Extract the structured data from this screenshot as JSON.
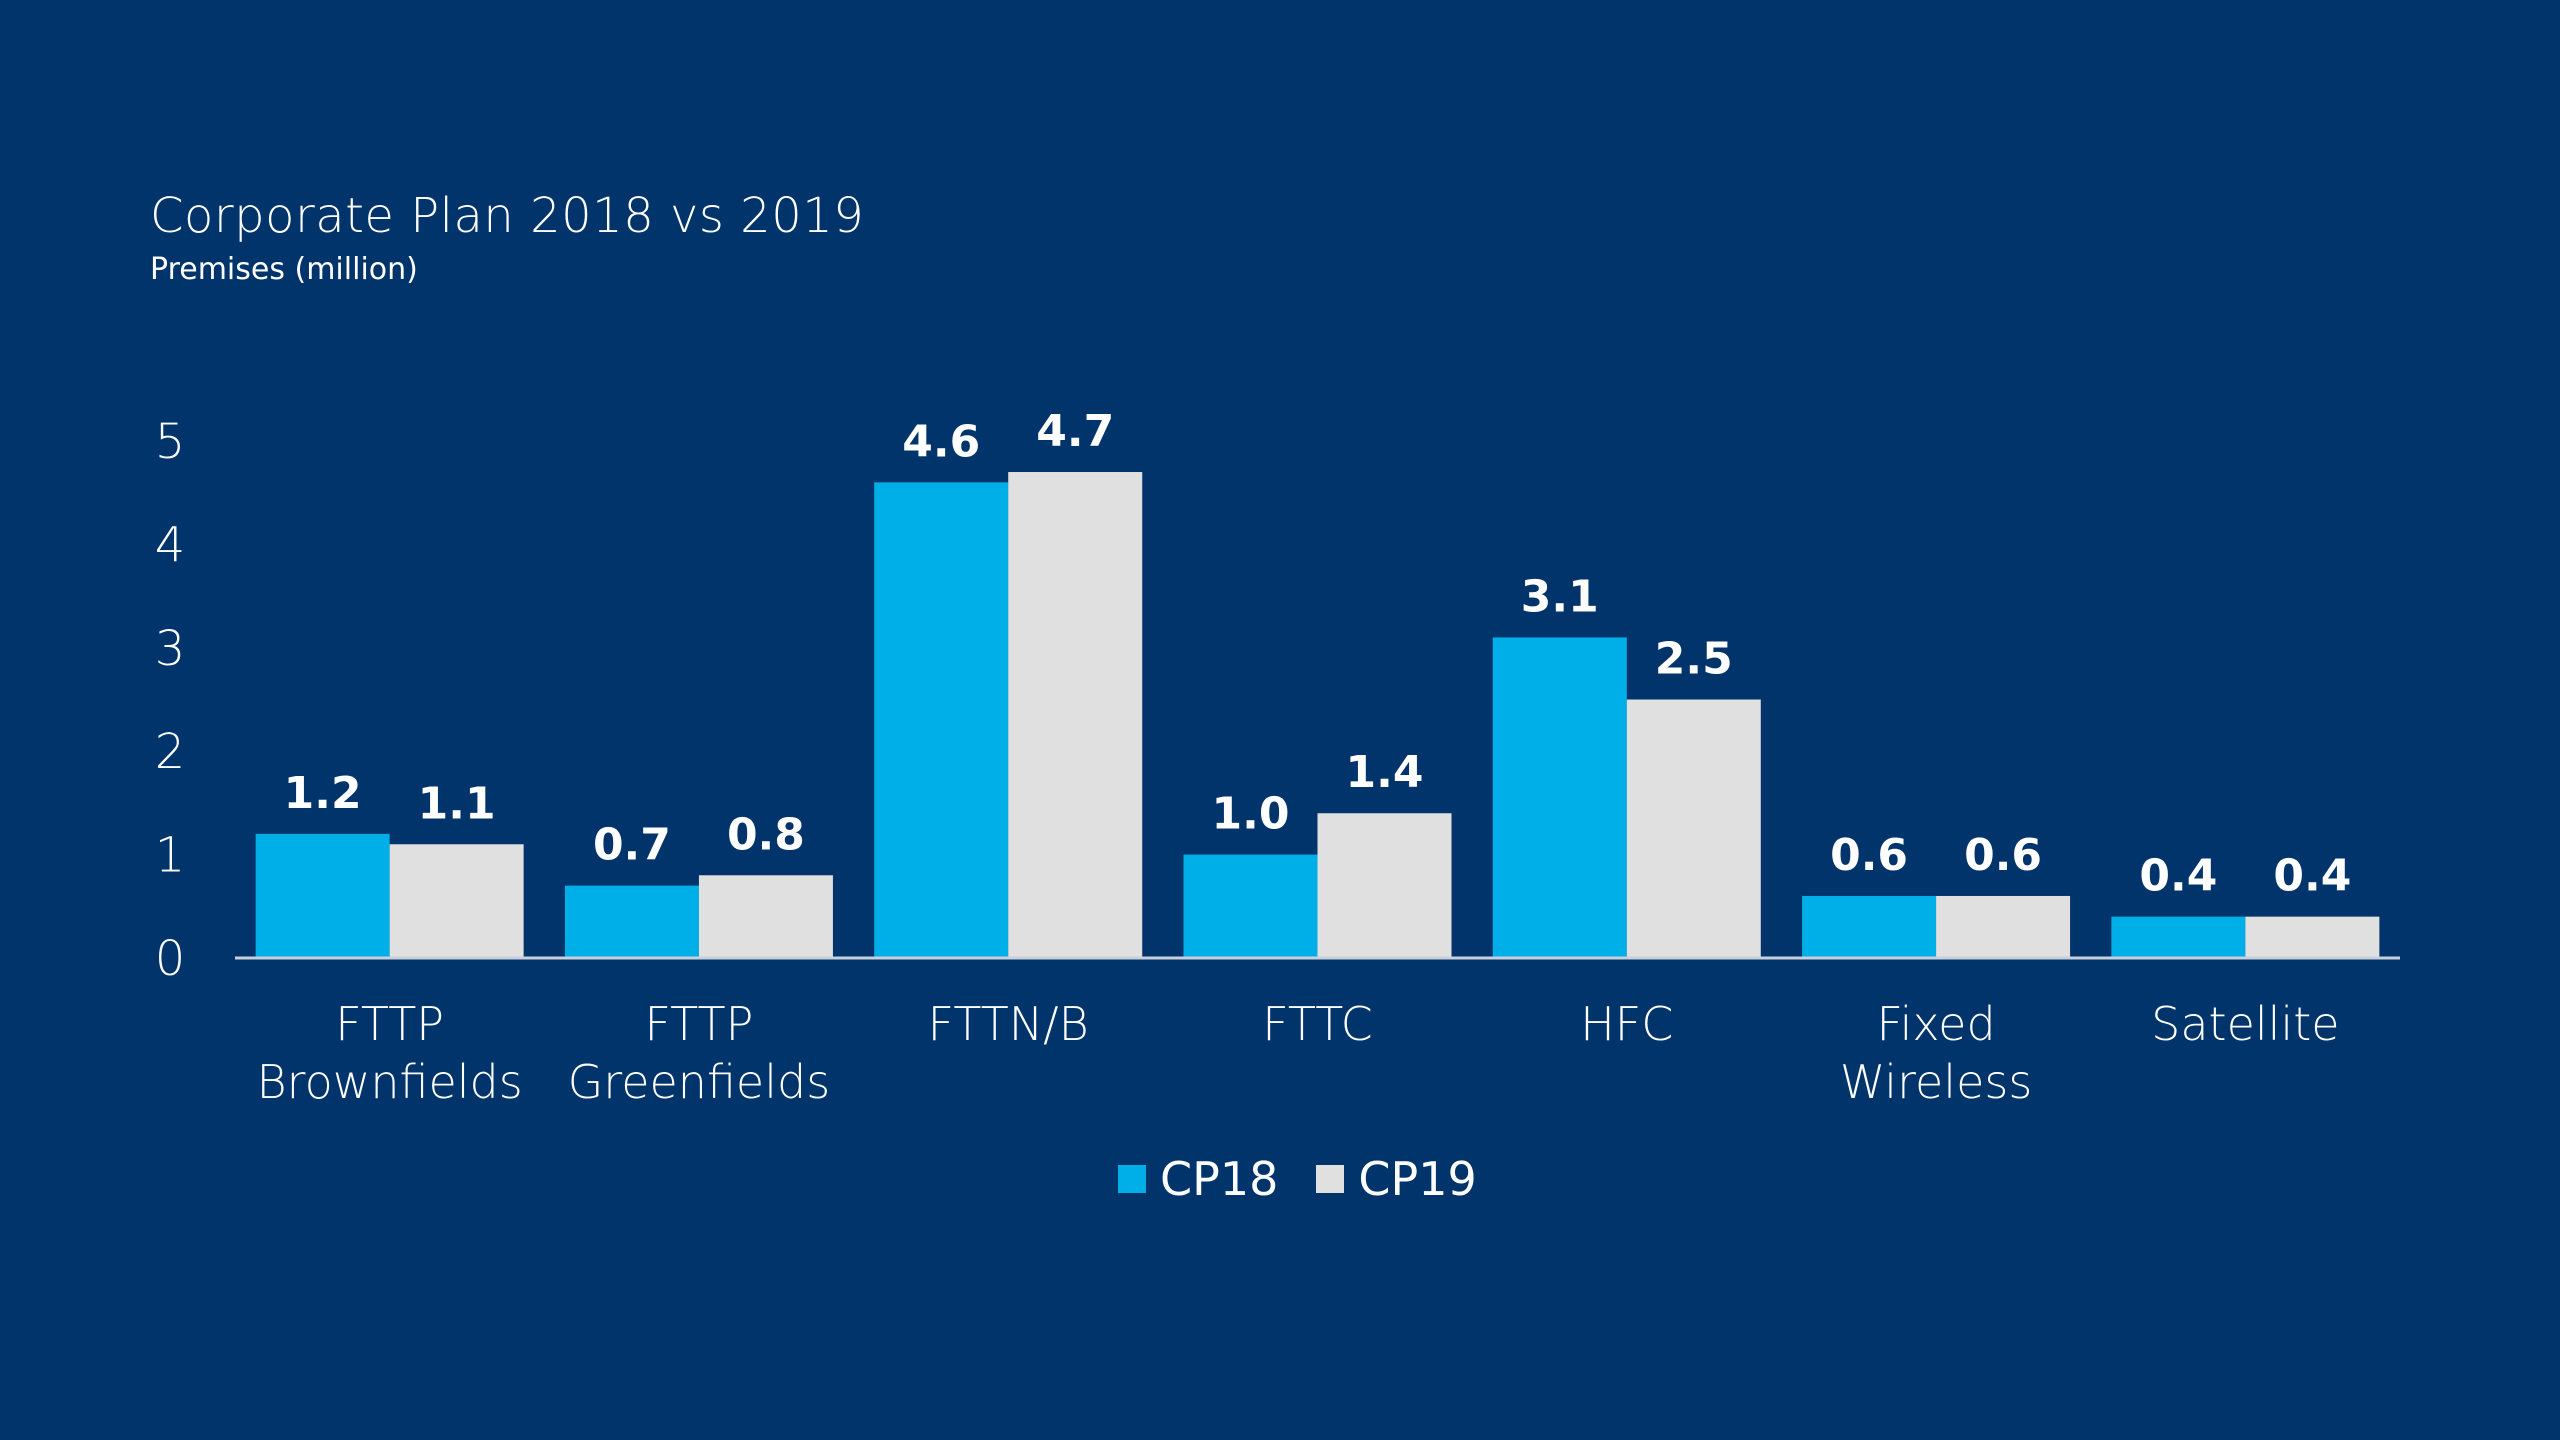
{
  "chart_data": {
    "type": "bar",
    "title": "Corporate Plan 2018 vs 2019",
    "subtitle": "Premises (million)",
    "xlabel": "",
    "ylabel": "Premises (million)",
    "ylim": [
      0,
      5
    ],
    "yticks": [
      "0",
      "1",
      "2",
      "3",
      "4",
      "5"
    ],
    "grid": false,
    "legend_position": "bottom-center",
    "categories": [
      [
        "FTTP",
        "Brownfields"
      ],
      [
        "FTTP",
        "Greenfields"
      ],
      [
        "FTTN/B"
      ],
      [
        "FTTC"
      ],
      [
        "HFC"
      ],
      [
        "Fixed",
        "Wireless"
      ],
      [
        "Satellite"
      ]
    ],
    "series": [
      {
        "name": "CP18",
        "color": "#00aee8",
        "values": [
          1.2,
          0.7,
          4.6,
          1.0,
          3.1,
          0.6,
          0.4
        ],
        "labels": [
          "1.2",
          "0.7",
          "4.6",
          "1.0",
          "3.1",
          "0.6",
          "0.4"
        ]
      },
      {
        "name": "CP19",
        "color": "#e0e0e0",
        "values": [
          1.1,
          0.8,
          4.7,
          1.4,
          2.5,
          0.6,
          0.4
        ],
        "labels": [
          "1.1",
          "0.8",
          "4.7",
          "1.4",
          "2.5",
          "0.6",
          "0.4"
        ]
      }
    ]
  },
  "colors": {
    "background": "#02346c",
    "text": "#ffffff",
    "axis": "#c8d0dc"
  }
}
